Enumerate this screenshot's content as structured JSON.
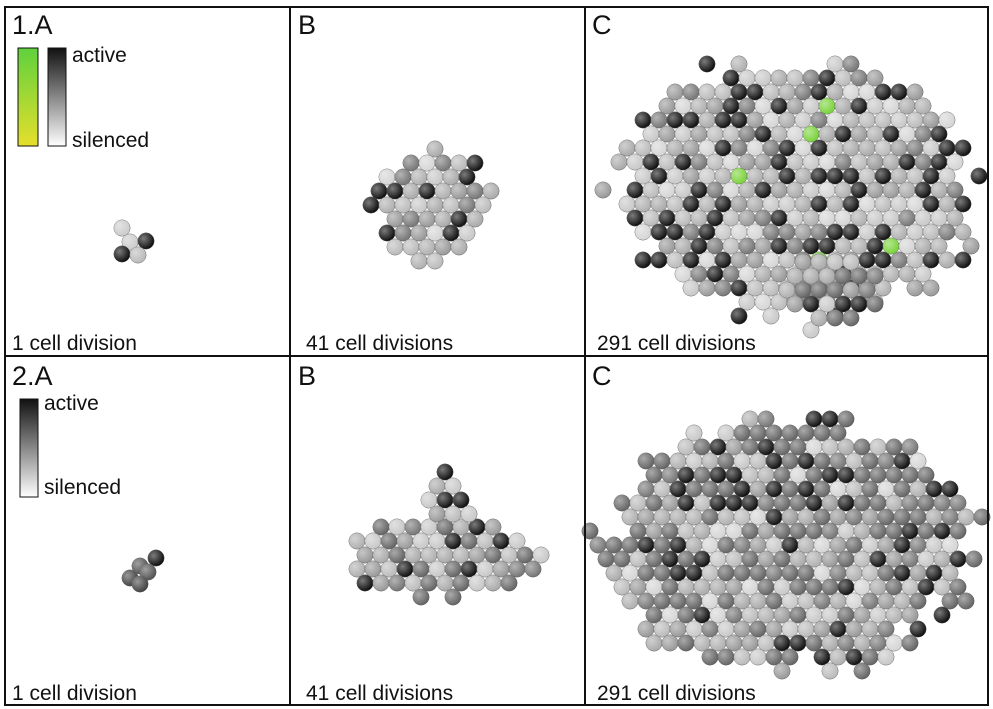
{
  "panels": [
    {
      "label": "1.A",
      "caption": "1 cell division",
      "legend_top": "active",
      "legend_bottom": "silenced"
    },
    {
      "label": "B",
      "caption": "41 cell divisions"
    },
    {
      "label": "C",
      "caption": "291 cell divisions"
    },
    {
      "label": "2.A",
      "caption": "1 cell division",
      "legend_top": "active",
      "legend_bottom": "silenced"
    },
    {
      "label": "B",
      "caption": "41 cell divisions"
    },
    {
      "label": "C",
      "caption": "291 cell divisions"
    }
  ]
}
